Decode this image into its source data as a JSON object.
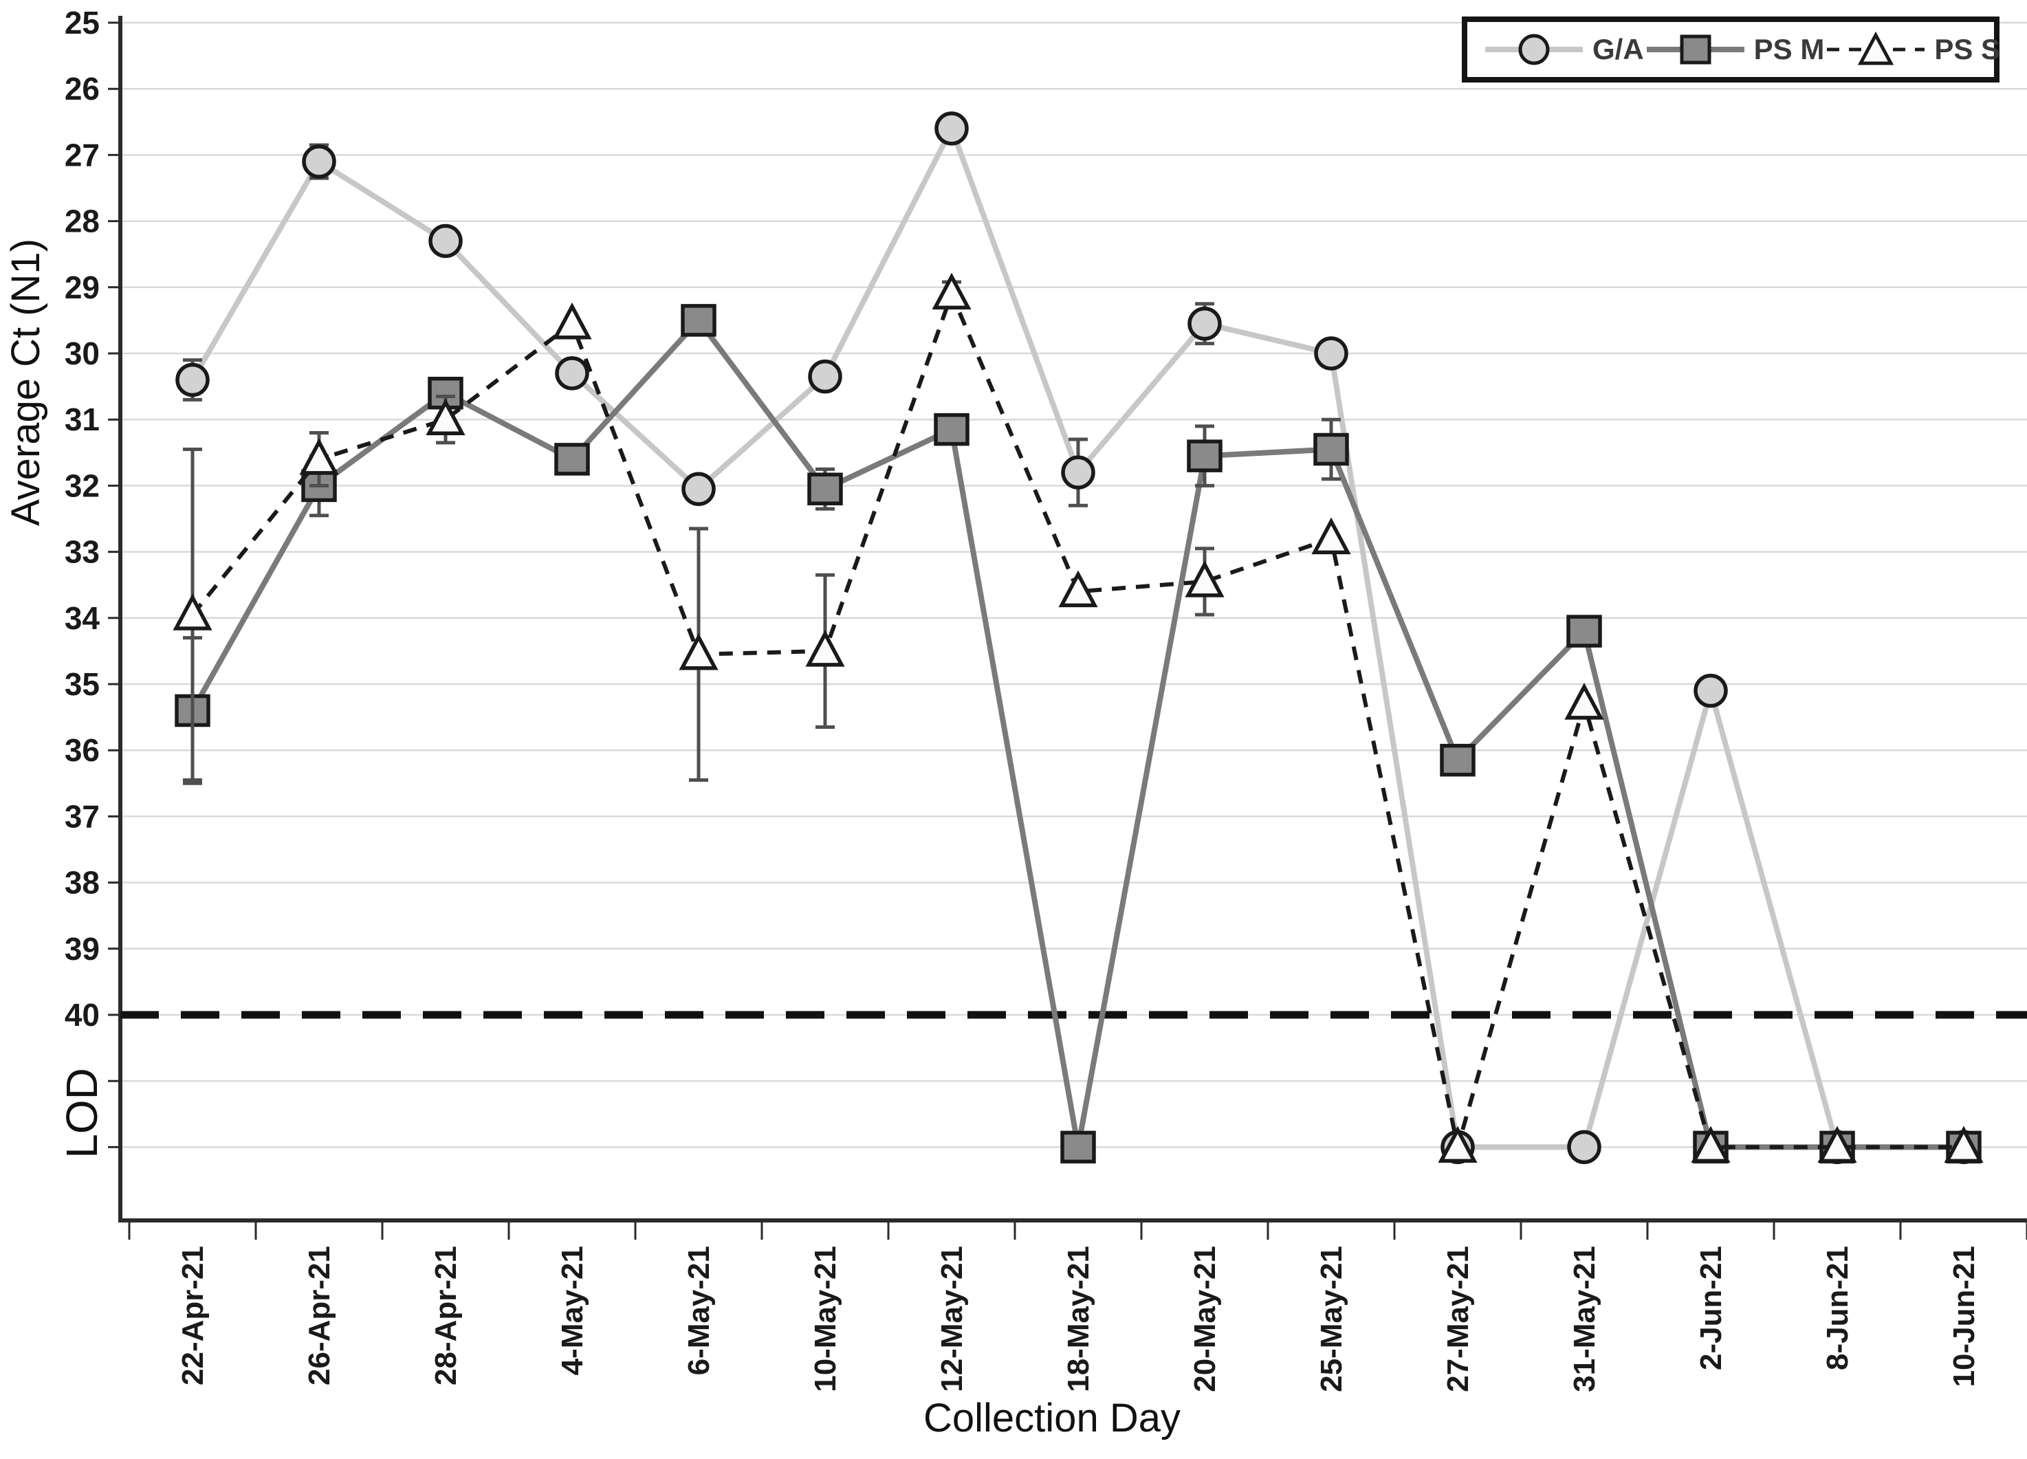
{
  "chart_data": {
    "type": "line",
    "title": "",
    "xlabel": "Collection Day",
    "ylabel": "Average Ct (N1)",
    "legend_position": "top-right",
    "y_axis": {
      "inverted": true,
      "tick_labels": [
        25,
        26,
        27,
        28,
        29,
        30,
        31,
        32,
        33,
        34,
        35,
        36,
        37,
        38,
        39,
        40
      ],
      "gridlines_extend_to": 42,
      "lod_label": "LOD",
      "lod_cutoff_line_value": 40,
      "lod_points_plotted_at": 42,
      "grid": true
    },
    "categories": [
      "22-Apr-21",
      "26-Apr-21",
      "28-Apr-21",
      "4-May-21",
      "6-May-21",
      "10-May-21",
      "12-May-21",
      "18-May-21",
      "20-May-21",
      "25-May-21",
      "27-May-21",
      "31-May-21",
      "2-Jun-21",
      "8-Jun-21",
      "10-Jun-21"
    ],
    "series": [
      {
        "name": "G/A",
        "marker": "circle",
        "line_style": "solid",
        "line_color": "#c7c7c7",
        "marker_fill": "#d2d2d2",
        "marker_stroke": "#1a1a1a",
        "values": [
          30.4,
          27.1,
          28.3,
          30.3,
          32.05,
          30.35,
          26.6,
          31.8,
          29.55,
          30.0,
          null,
          null,
          35.1,
          null,
          null
        ],
        "errors": [
          0.3,
          0.25,
          0,
          0,
          0,
          0,
          0,
          0.5,
          0.3,
          0,
          0,
          0,
          0,
          0,
          0
        ]
      },
      {
        "name": "PS M",
        "marker": "square",
        "line_style": "solid",
        "line_color": "#7a7a7a",
        "marker_fill": "#8a8a8a",
        "marker_stroke": "#1a1a1a",
        "values": [
          35.4,
          32.0,
          30.6,
          31.6,
          29.5,
          32.05,
          31.15,
          null,
          31.55,
          31.45,
          36.15,
          34.2,
          null,
          null,
          null
        ],
        "errors": [
          1.1,
          0.45,
          0,
          0,
          0,
          0.3,
          0,
          0,
          0.45,
          0.45,
          0,
          0,
          0,
          0,
          0
        ]
      },
      {
        "name": "PS S",
        "marker": "triangle",
        "line_style": "dashed",
        "line_color": "#1a1a1a",
        "marker_fill": "#fbfbfb",
        "marker_stroke": "#1a1a1a",
        "values": [
          33.95,
          31.6,
          31.0,
          29.55,
          34.55,
          34.5,
          29.1,
          33.6,
          33.45,
          32.8,
          null,
          35.3,
          null,
          null,
          null
        ],
        "errors": [
          2.5,
          0.4,
          0.35,
          0,
          1.9,
          1.15,
          0.18,
          0,
          0.5,
          0,
          0,
          0,
          0,
          0,
          0
        ]
      }
    ],
    "colors": {
      "gridline": "#d9d9d9",
      "axis": "#2b2b2b",
      "error_bar": "#4f4f4f",
      "lod_line": "#111111",
      "tick_text": "#1a1a1a"
    }
  }
}
